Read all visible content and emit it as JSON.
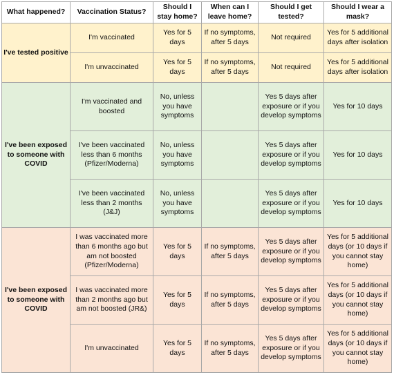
{
  "headers": [
    "What happened?",
    "Vaccination Status?",
    "Should I stay home?",
    "When can I leave home?",
    "Should I get tested?",
    "Should I wear a mask?"
  ],
  "groups": [
    {
      "label": "I've tested positive",
      "rows": [
        {
          "status": "I'm vaccinated",
          "stay_home": "Yes for 5 days",
          "leave_home": "If no symptoms, after 5 days",
          "tested": "Not required",
          "mask": "Yes for 5 additional days after isolation"
        },
        {
          "status": "I'm unvaccinated",
          "stay_home": "Yes for 5 days",
          "leave_home": "If no symptoms, after 5 days",
          "tested": "Not required",
          "mask": "Yes for 5 additional days after isolation"
        }
      ]
    },
    {
      "label": "I've been exposed to someone with COVID",
      "rows": [
        {
          "status": "I'm vaccinated and boosted",
          "stay_home": "No, unless you have symptoms",
          "leave_home": "",
          "tested": "Yes 5 days after exposure or if you develop symptoms",
          "mask": "Yes for 10 days"
        },
        {
          "status": "I've been vaccinated less than 6 months (Pfizer/Moderna)",
          "stay_home": "No, unless you have symptoms",
          "leave_home": "",
          "tested": "Yes 5 days after exposure or if you develop symptoms",
          "mask": "Yes for 10 days"
        },
        {
          "status": "I've been vaccinated less than 2 months (J&J)",
          "stay_home": "No, unless you have symptoms",
          "leave_home": "",
          "tested": "Yes 5 days after exposure or if you develop symptoms",
          "mask": "Yes for 10 days"
        }
      ]
    },
    {
      "label": "I've been exposed to someone with COVID",
      "rows": [
        {
          "status": "I was vaccinated more than 6 months ago but am not boosted (Pfizer/Moderna)",
          "stay_home": "Yes for 5 days",
          "leave_home": "If no symptoms, after 5 days",
          "tested": "Yes 5 days after exposure or if you develop symptoms",
          "mask": "Yes for 5 additional days (or 10 days if you cannot stay home)"
        },
        {
          "status": "I was vaccinated more than 2 months ago but am not boosted (JR&)",
          "stay_home": "Yes for 5 days",
          "leave_home": "If no symptoms, after 5 days",
          "tested": "Yes 5 days after exposure or if you develop symptoms",
          "mask": "Yes for 5 additional days (or 10 days if you cannot stay home)"
        },
        {
          "status": "I'm unvaccinated",
          "stay_home": "Yes for 5 days",
          "leave_home": "If no symptoms, after 5 days",
          "tested": "Yes 5 days after exposure or if you develop symptoms",
          "mask": "Yes for 5 additional days (or 10 days if you cannot stay home)"
        }
      ]
    }
  ]
}
